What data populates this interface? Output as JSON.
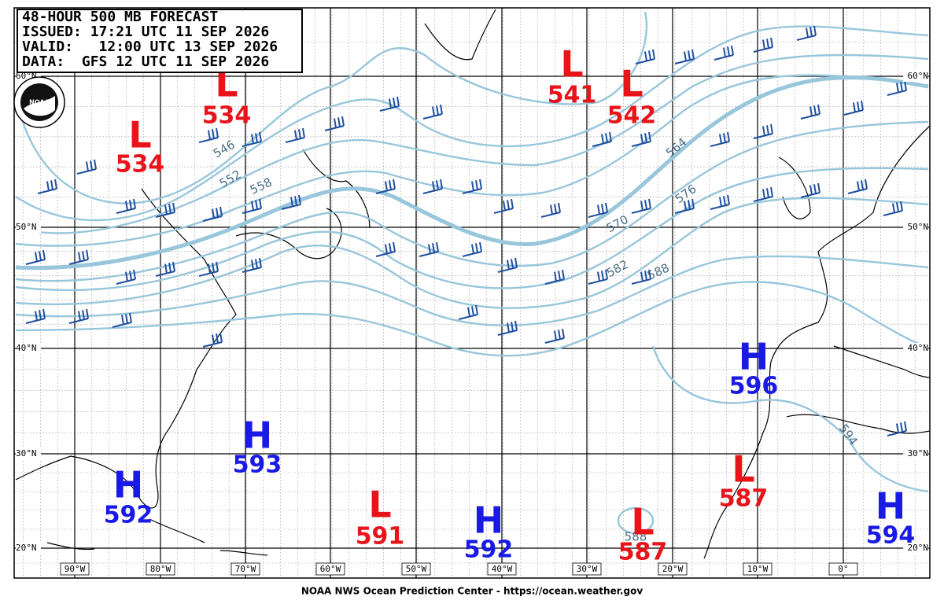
{
  "header": {
    "lines": [
      "48-HOUR 500 MB FORECAST",
      "ISSUED: 17:21 UTC 11 SEP 2026",
      "VALID:   12:00 UTC 13 SEP 2026",
      "DATA:  GFS 12 UTC 11 SEP 2026"
    ]
  },
  "logo": "NOAA",
  "centers": [
    {
      "letter": "L",
      "value": 534
    },
    {
      "letter": "L",
      "value": 534
    },
    {
      "letter": "L",
      "value": 541
    },
    {
      "letter": "L",
      "value": 542
    },
    {
      "letter": "H",
      "value": 596
    },
    {
      "letter": "H",
      "value": 593
    },
    {
      "letter": "H",
      "value": 592
    },
    {
      "letter": "L",
      "value": 591
    },
    {
      "letter": "H",
      "value": 592
    },
    {
      "letter": "L",
      "value": 587
    },
    {
      "letter": "L",
      "value": 587
    },
    {
      "letter": "H",
      "value": 594
    }
  ],
  "contour_labels": [
    "546",
    "552",
    "558",
    "564",
    "570",
    "576",
    "582",
    "588",
    "588",
    "594"
  ],
  "latitude_labels": [
    "60°N",
    "50°N",
    "40°N",
    "30°N",
    "20°N"
  ],
  "longitude_labels": [
    "90°W",
    "80°W",
    "70°W",
    "60°W",
    "50°W",
    "40°W",
    "30°W",
    "20°W",
    "10°W",
    "0°"
  ],
  "footer": "NOAA NWS Ocean Prediction Center - https://ocean.weather.gov"
}
